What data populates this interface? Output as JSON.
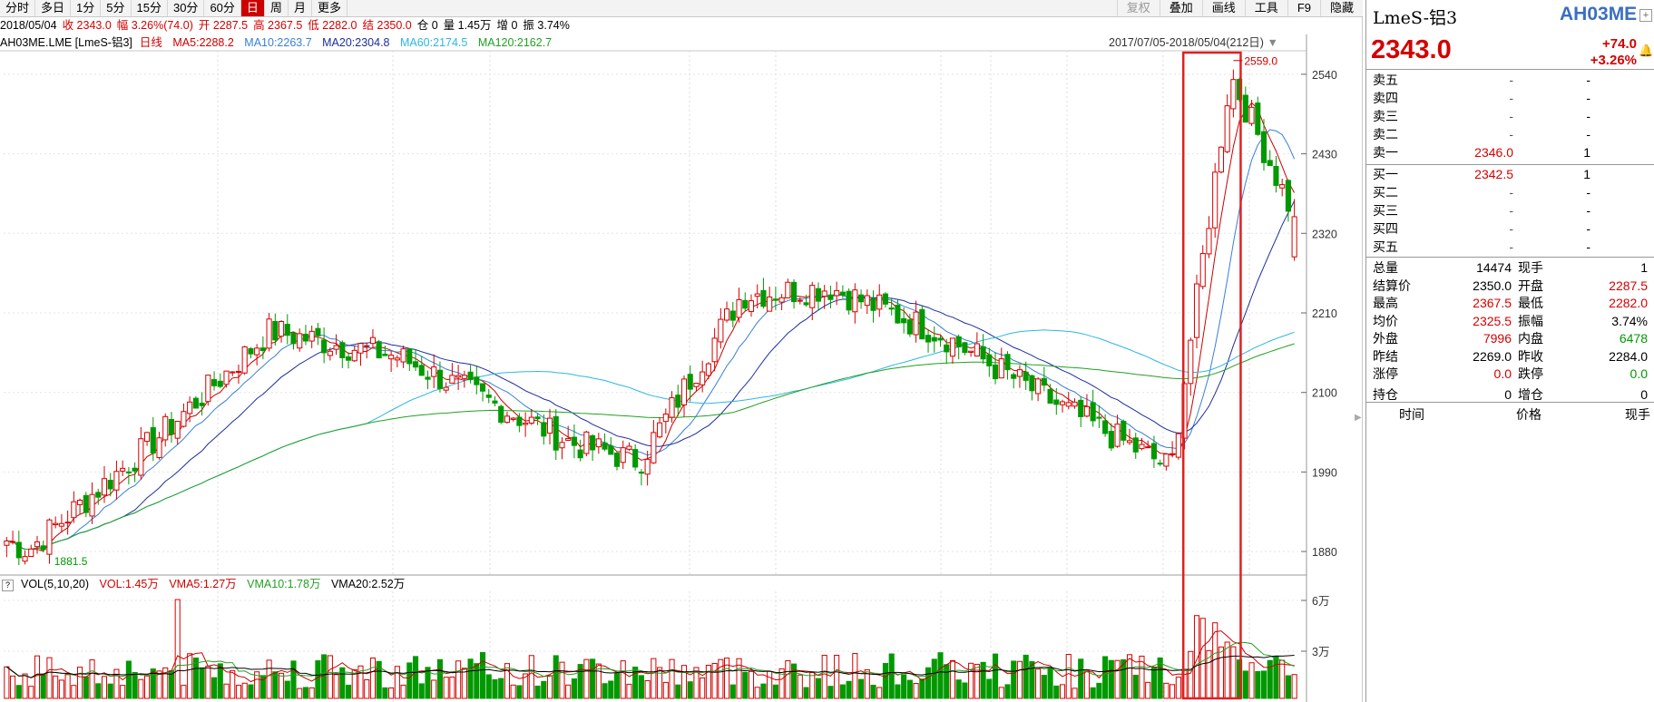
{
  "toolbar": {
    "periods": [
      "分时",
      "多日",
      "1分",
      "5分",
      "15分",
      "30分",
      "60分",
      "日",
      "周",
      "月",
      "更多"
    ],
    "active_period": "日",
    "right_items": [
      "复权",
      "叠加",
      "画线",
      "工具",
      "F9",
      "隐藏"
    ]
  },
  "infobar": {
    "date": "2018/05/04",
    "close": "收 2343.0",
    "change": "幅 3.26%(74.0)",
    "open": "开 2287.5",
    "high": "高 2367.5",
    "low": "低 2282.0",
    "settle": "结 2350.0",
    "oi": "仓 0",
    "volume": "量 1.45万",
    "oi_chg": "增 0",
    "amplitude": "振 3.74%"
  },
  "ma_legend": {
    "symbol": "AH03ME.LME [LmeS-铝3]",
    "period": "日线",
    "ma5": "MA5:2288.2",
    "ma10": "MA10:2263.7",
    "ma20": "MA20:2304.8",
    "ma60": "MA60:2174.5",
    "ma120": "MA120:2162.7",
    "range": "2017/07/05-2018/05/04(212日)"
  },
  "vol_legend": {
    "q": "?",
    "name": "VOL(5,10,20)",
    "vol": "VOL:1.45万",
    "vma5": "VMA5:1.27万",
    "vma10": "VMA10:1.78万",
    "vma20": "VMA20:2.52万"
  },
  "colors": {
    "up": "#d40000",
    "down": "#009900",
    "ma5": "#cc0000",
    "ma10": "#3a7fd5",
    "ma20": "#1c2e9c",
    "ma60": "#2cb8e0",
    "ma120": "#22a022",
    "highlight_box": "#e02020"
  },
  "chart_data": {
    "type": "candlestick",
    "price_axis": {
      "ticks": [
        "2540",
        "2430",
        "2320",
        "2210",
        "2100",
        "1990",
        "1880"
      ],
      "ylim": [
        1850,
        2580
      ]
    },
    "volume_axis": {
      "ticks": [
        "6万",
        "3万"
      ]
    },
    "annotations": {
      "max_label": "2559.0",
      "min_label": "1881.5"
    },
    "last_bar": {
      "open": 2287.5,
      "high": 2367.5,
      "low": 2282.0,
      "close": 2343.0
    },
    "highlight": {
      "from": "2018/04/09",
      "to": "2018/04/20"
    },
    "key_points": [
      {
        "x": "2017/07/05",
        "close": 1895
      },
      {
        "x": "2017/07/10",
        "close": 1882
      },
      {
        "x": "2017/08/10",
        "close": 2040
      },
      {
        "x": "2017/09/05",
        "close": 2185
      },
      {
        "x": "2017/10/05",
        "close": 2150
      },
      {
        "x": "2017/11/15",
        "close": 2030
      },
      {
        "x": "2017/12/01",
        "close": 2005
      },
      {
        "x": "2017/12/25",
        "close": 2235
      },
      {
        "x": "2018/01/15",
        "close": 2245
      },
      {
        "x": "2018/02/10",
        "close": 2180
      },
      {
        "x": "2018/03/10",
        "close": 2080
      },
      {
        "x": "2018/04/05",
        "close": 1995
      },
      {
        "x": "2018/04/19",
        "close": 2540
      },
      {
        "x": "2018/05/04",
        "close": 2343
      }
    ]
  },
  "quote": {
    "name": "LmeS-铝3",
    "code": "AH03ME",
    "price": "2343.0",
    "change": "+74.0",
    "change_pct": "+3.26%",
    "asks": [
      {
        "label": "卖五",
        "price": "-",
        "vol": "-"
      },
      {
        "label": "卖四",
        "price": "-",
        "vol": "-"
      },
      {
        "label": "卖三",
        "price": "-",
        "vol": "-"
      },
      {
        "label": "卖二",
        "price": "-",
        "vol": "-"
      },
      {
        "label": "卖一",
        "price": "2346.0",
        "vol": "1"
      }
    ],
    "bids": [
      {
        "label": "买一",
        "price": "2342.5",
        "vol": "1"
      },
      {
        "label": "买二",
        "price": "-",
        "vol": "-"
      },
      {
        "label": "买三",
        "price": "-",
        "vol": "-"
      },
      {
        "label": "买四",
        "price": "-",
        "vol": "-"
      },
      {
        "label": "买五",
        "price": "-",
        "vol": "-"
      }
    ],
    "stats": [
      {
        "l1": "总量",
        "v1": "14474",
        "l2": "现手",
        "v2": "1",
        "c1": "#000",
        "c2": "#000"
      },
      {
        "l1": "结算价",
        "v1": "2350.0",
        "l2": "开盘",
        "v2": "2287.5",
        "c1": "#000",
        "c2": "#d40000"
      },
      {
        "l1": "最高",
        "v1": "2367.5",
        "l2": "最低",
        "v2": "2282.0",
        "c1": "#d40000",
        "c2": "#d40000"
      },
      {
        "l1": "均价",
        "v1": "2325.5",
        "l2": "振幅",
        "v2": "3.74%",
        "c1": "#d40000",
        "c2": "#000"
      },
      {
        "l1": "外盘",
        "v1": "7996",
        "l2": "内盘",
        "v2": "6478",
        "c1": "#d40000",
        "c2": "#009900"
      },
      {
        "l1": "昨结",
        "v1": "2269.0",
        "l2": "昨收",
        "v2": "2284.0",
        "c1": "#000",
        "c2": "#000"
      },
      {
        "l1": "涨停",
        "v1": "0.0",
        "l2": "跌停",
        "v2": "0.0",
        "c1": "#d40000",
        "c2": "#009900"
      },
      {
        "l1": "持仓",
        "v1": "0",
        "l2": "增仓",
        "v2": "0",
        "c1": "#000",
        "c2": "#000"
      }
    ],
    "tick_headers": [
      "时间",
      "价格",
      "现手"
    ]
  }
}
